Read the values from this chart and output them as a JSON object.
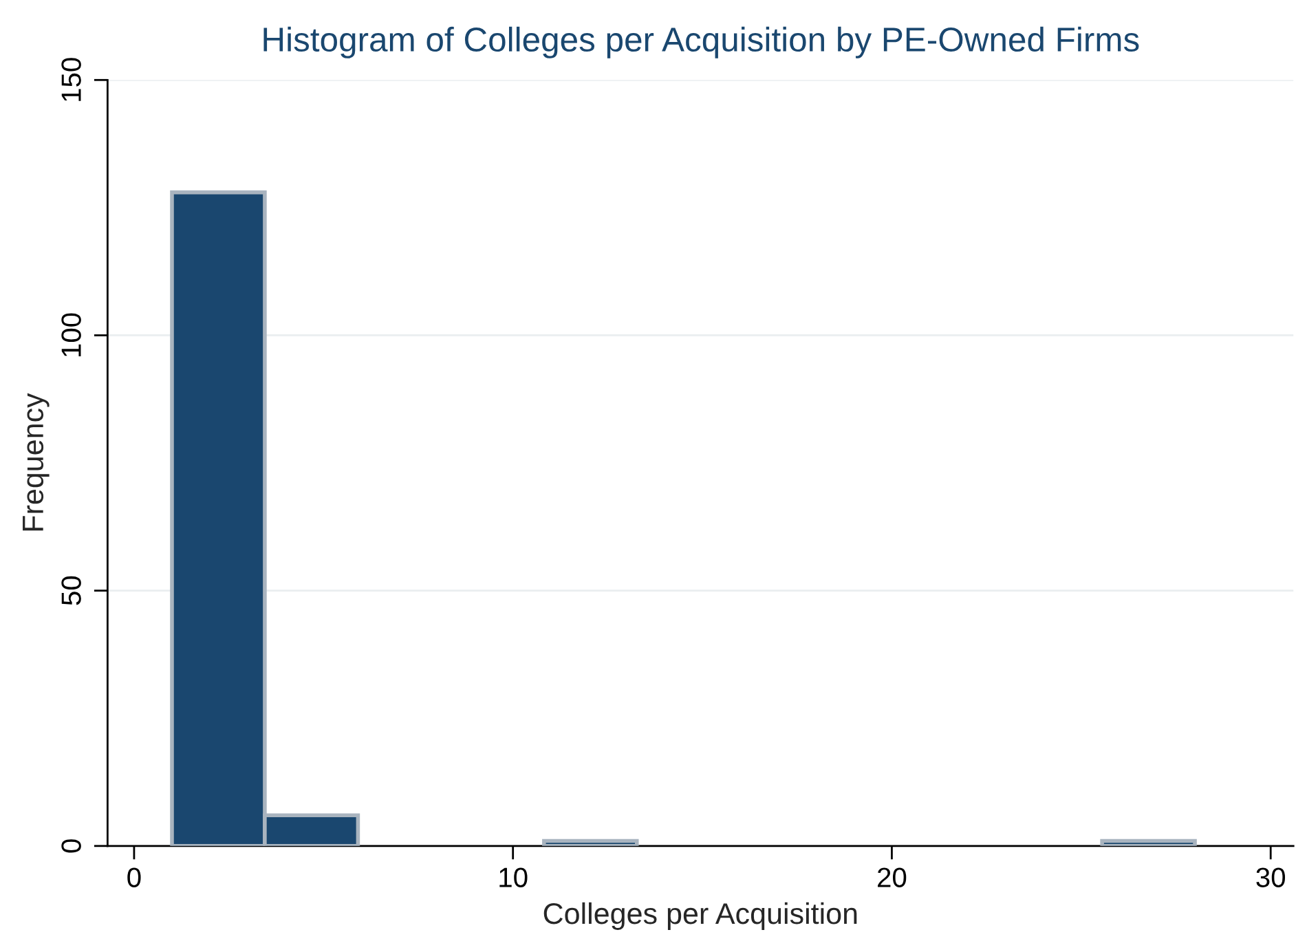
{
  "chart_data": {
    "type": "histogram",
    "title": "Histogram of Colleges per Acquisition by PE-Owned Firms",
    "xlabel": "Colleges per Acquisition",
    "ylabel": "Frequency",
    "bins": [
      1,
      3.45,
      5.91,
      10.82,
      13.27,
      25.55,
      28
    ],
    "values": [
      128,
      6,
      0,
      1,
      0,
      1
    ],
    "color": "#1a476f",
    "xlim": [
      -0.7,
      30.6
    ],
    "xticks": [
      0,
      10,
      20,
      30
    ],
    "ylim": [
      0,
      150
    ],
    "yticks": [
      0,
      50,
      100,
      150
    ],
    "grid": "y"
  }
}
